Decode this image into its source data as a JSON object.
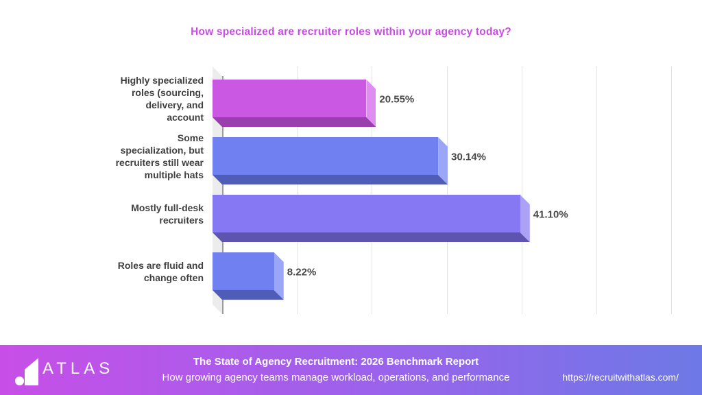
{
  "title": {
    "text": "How specialized are recruiter roles within your agency today?",
    "color": "#c94be6"
  },
  "chart_data": {
    "type": "bar",
    "orientation": "horizontal",
    "title": "How specialized are recruiter roles within your agency today?",
    "categories": [
      "Highly specialized\nroles (sourcing,\ndelivery, and\naccount",
      "Some\nspecialization, but\nrecruiters still wear\nmultiple hats",
      "Mostly full-desk\nrecruiters",
      "Roles are fluid and\nchange often"
    ],
    "values": [
      20.55,
      30.14,
      41.1,
      8.22
    ],
    "value_labels": [
      "20.55%",
      "30.14%",
      "41.10%",
      "8.22%"
    ],
    "xlim": [
      0,
      60
    ],
    "gridline_step_pct": 10,
    "grid": true,
    "style": "3d-extruded",
    "bar_colors": [
      {
        "front": "#cb58e2",
        "bottom": "#9c3fae",
        "bevel": "#df8df1"
      },
      {
        "front": "#7080f0",
        "bottom": "#505db8",
        "bevel": "#9aa6f6"
      },
      {
        "front": "#8578f2",
        "bottom": "#5c54ae",
        "bevel": "#aba2f8"
      },
      {
        "front": "#7080f0",
        "bottom": "#505db8",
        "bevel": "#9aa6f6"
      }
    ],
    "wall_color": "#ececec",
    "axis_color": "#9b9b9b",
    "grid_color": "#e3e3e3",
    "label_color": "#3f3f3f"
  },
  "footer": {
    "brand": "ATLAS",
    "report_title": "The State of Agency Recruitment: 2026 Benchmark Report",
    "report_subtitle": "How growing agency teams manage workload, operations, and performance",
    "url": "https://recruitwithatlas.com/",
    "gradient_left": "#c74fe8",
    "gradient_mid": "#9a63eb",
    "gradient_right": "#6d79e6"
  }
}
